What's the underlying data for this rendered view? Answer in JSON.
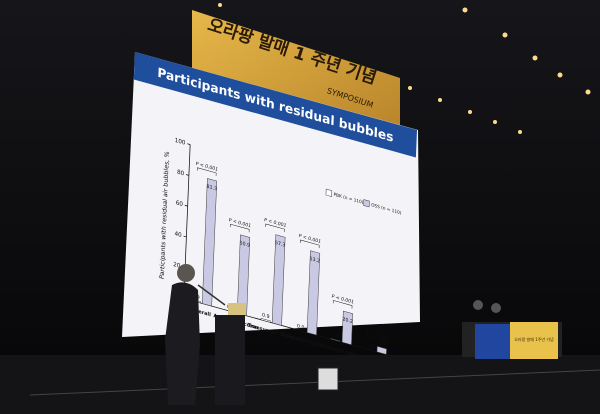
{
  "banner": {
    "line1": "오라팡 발매 1 주년 기념",
    "line2": "SYMPOSIUM"
  },
  "table_sign": "오라팡 발매 1주년 기념",
  "chart_data": {
    "type": "bar",
    "title": "Participants with residual bubbles",
    "y_label": "Participants with residual air bubbles, %",
    "categories": [
      "Overall",
      "Ascending colon",
      "Transverse colon",
      "Descending colon",
      "Sigmoid colon",
      "Rectum"
    ],
    "series": [
      {
        "name": "PBK (n = 110)",
        "color": "#ffffff",
        "values": [
          0.9,
          0,
          0.9,
          0,
          0.4,
          0
        ],
        "value_labels": [
          "0.9",
          "0.0",
          "0.9",
          "0.0",
          "0.4",
          "0.0"
        ]
      },
      {
        "name": "OSS (n = 110)",
        "color": "#c9c9e3",
        "values": [
          81.3,
          50.9,
          57.3,
          53.2,
          20.2,
          3.6
        ]
      }
    ],
    "p_values": [
      "P < 0.001",
      "P < 0.001",
      "P < 0.001",
      "P < 0.001",
      "P < 0.001",
      "P = 0.120"
    ],
    "ylim": [
      0,
      100
    ],
    "yticks": [
      0,
      20,
      40,
      60,
      80,
      100
    ],
    "legend": "upper right"
  }
}
